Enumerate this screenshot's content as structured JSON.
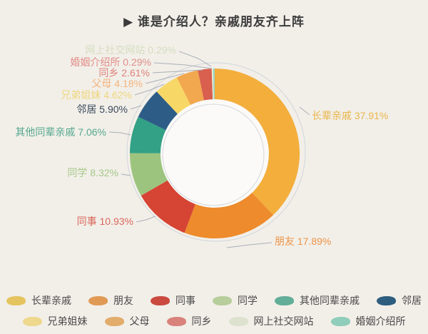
{
  "title": "▶ 谁是介绍人？亲戚朋友齐上阵",
  "background_color": "#F2EFE9",
  "chart_data": {
    "type": "pie",
    "subtype": "donut",
    "title": "谁是介绍人？亲戚朋友齐上阵",
    "unit": "%",
    "start_angle_deg": 0,
    "direction": "clockwise",
    "legend_position": "bottom",
    "series": [
      {
        "name": "长辈亲戚",
        "value": 37.91,
        "color": "#F3AE3C",
        "label_color": "#E9B64A"
      },
      {
        "name": "朋友",
        "value": 17.89,
        "color": "#EE8B2C",
        "label_color": "#ED9448"
      },
      {
        "name": "同事",
        "value": 10.93,
        "color": "#D64434",
        "label_color": "#D8685C"
      },
      {
        "name": "同学",
        "value": 8.32,
        "color": "#9CC47E",
        "label_color": "#A6C889"
      },
      {
        "name": "其他同辈亲戚",
        "value": 7.06,
        "color": "#32A185",
        "label_color": "#55A88E"
      },
      {
        "name": "邻居",
        "value": 5.9,
        "color": "#2D5C87",
        "label_color": "#3A4A5C"
      },
      {
        "name": "兄弟姐妹",
        "value": 4.62,
        "color": "#F7D867",
        "label_color": "#EFD67C"
      },
      {
        "name": "父母",
        "value": 4.18,
        "color": "#F2A84E",
        "label_color": "#F2B47F"
      },
      {
        "name": "同乡",
        "value": 2.61,
        "color": "#D95F4E",
        "label_color": "#E0837D"
      },
      {
        "name": "网上社交网站",
        "value": 0.29,
        "color": "#E6EAD3",
        "label_color": "#D4DDBE"
      },
      {
        "name": "婚姻介绍所",
        "value": 0.29,
        "color": "#9BD3C0",
        "label_color": "#E28D88"
      }
    ]
  },
  "legend": {
    "rows": [
      [
        {
          "label": "长辈亲戚",
          "color": "#E5C35F"
        },
        {
          "label": "朋友",
          "color": "#E09A55"
        },
        {
          "label": "同事",
          "color": "#CB4A40"
        },
        {
          "label": "同学",
          "color": "#B7CD9B"
        },
        {
          "label": "其他同辈亲戚",
          "color": "#63AE99"
        },
        {
          "label": "邻居",
          "color": "#2E5D7E"
        }
      ],
      [
        {
          "label": "兄弟姐妹",
          "color": "#EDD88E"
        },
        {
          "label": "父母",
          "color": "#E2AC6B"
        },
        {
          "label": "同乡",
          "color": "#D9827B"
        },
        {
          "label": "网上社交网站",
          "color": "#DCE2CD"
        },
        {
          "label": "婚姻介绍所",
          "color": "#90CDBA"
        }
      ]
    ]
  }
}
